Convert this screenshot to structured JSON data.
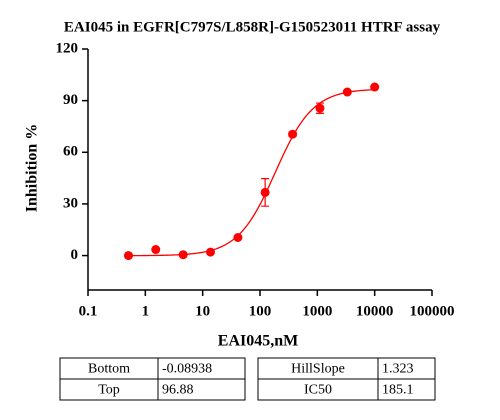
{
  "chart_data": {
    "type": "scatter",
    "title": "EAI045 in EGFR[C797S/L858R]-G150523011 HTRF assay",
    "x_label": "EAI045,nM",
    "y_label": "Inhibition %",
    "x": [
      0.508,
      1.52,
      4.57,
      13.7,
      41.2,
      123,
      370,
      1111,
      3333,
      10000
    ],
    "series": [
      {
        "color": "#ff0000",
        "values": [
          0,
          3.5,
          0.5,
          2,
          10.5,
          36.7,
          70.5,
          85.6,
          95,
          97.9
        ],
        "errors": [
          0.5,
          0.5,
          0.5,
          0.5,
          0.8,
          8,
          1.2,
          3,
          0.8,
          0.6
        ]
      }
    ],
    "log_x": true,
    "xlim": [
      0.1,
      100000
    ],
    "xticks": [
      0.1,
      1,
      10,
      100,
      1000,
      10000,
      100000
    ],
    "ylim": [
      -20,
      120
    ],
    "yticks": [
      0,
      30,
      60,
      90,
      120
    ]
  },
  "fit_params": [
    [
      [
        "Bottom",
        "-0.08938"
      ],
      [
        "Top",
        "96.88"
      ]
    ],
    [
      [
        "HillSlope",
        "1.323"
      ],
      [
        "IC50",
        "185.1"
      ]
    ]
  ]
}
